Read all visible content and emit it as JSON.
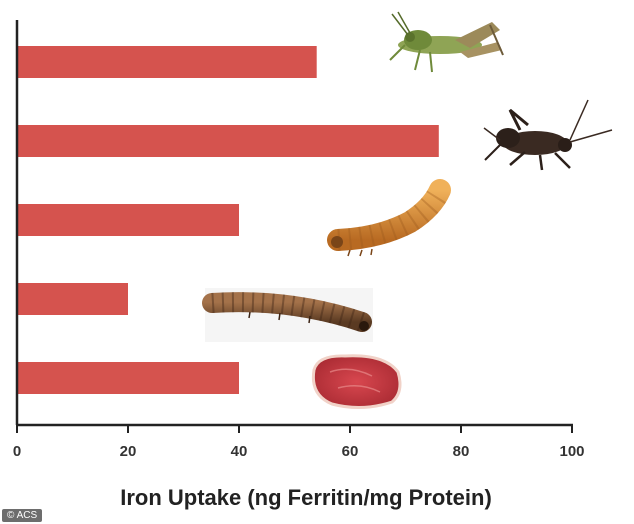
{
  "chart_data": {
    "type": "bar",
    "orientation": "horizontal",
    "categories": [
      "Grasshopper",
      "Cricket",
      "Mealworm",
      "Buffalo worm",
      "Sirloin beef"
    ],
    "values": [
      54,
      76,
      40,
      20,
      40
    ],
    "xlabel": "Iron Uptake (ng Ferritin/mg Protein)",
    "xlim": [
      0,
      100
    ],
    "xticks": [
      0,
      20,
      40,
      60,
      80,
      100
    ],
    "grid": false,
    "legend": "none",
    "bar_color": "#d5534e",
    "category_icons": [
      "grasshopper-icon",
      "cricket-icon",
      "mealworm-icon",
      "buffalo-worm-icon",
      "steak-icon"
    ]
  },
  "credit": "© ACS"
}
